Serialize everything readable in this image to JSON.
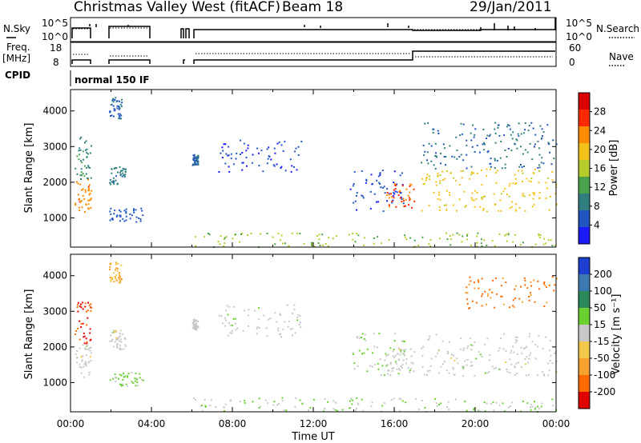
{
  "header": {
    "station": "Christmas Valley West (fitACF)",
    "beam": "Beam 18",
    "date": "29/Jan/2011"
  },
  "params": {
    "nsky_label": "N.Sky",
    "nsky_ticks": [
      "10^5",
      "10^0"
    ],
    "nsearch_label": "N.Search",
    "nsearch_ticks": [
      "10^5",
      "10^0"
    ],
    "freq_label": "Freq.",
    "freq_unit": "[MHz]",
    "freq_ticks": [
      "18",
      "8"
    ],
    "nave_label": "Nave",
    "nave_ticks": [
      "60",
      "0"
    ],
    "cpid_label": "CPID",
    "cpid_value": "normal 150 IF"
  },
  "colors": {
    "power_scale": [
      "#1a1aff",
      "#2255c0",
      "#2f7f7f",
      "#4aa34a",
      "#b5cc2a",
      "#f3c21a",
      "#ff8c00",
      "#ff2a00",
      "#d80000"
    ],
    "velocity_scale": [
      "#1f3fd0",
      "#3a7ab0",
      "#2c8a5a",
      "#6ad030",
      "#c8c8c8",
      "#f2c84b",
      "#f7a22e",
      "#ff6a00",
      "#e00000"
    ]
  },
  "chart_data": [
    {
      "type": "heatmap",
      "panel": "power",
      "xlabel": "",
      "ylabel": "Slant Range [km]",
      "x_ticks": [
        "00:00",
        "04:00",
        "08:00",
        "12:00",
        "16:00",
        "20:00",
        "00:00"
      ],
      "x_range_hours": [
        0,
        24
      ],
      "y_range_km": [
        180,
        4600
      ],
      "y_ticks": [
        1000,
        2000,
        3000,
        4000
      ],
      "colorbar": {
        "label": "Power [dB]",
        "ticks": [
          "28",
          "24",
          "20",
          "16",
          "12",
          "8",
          "4"
        ],
        "range": [
          0,
          30
        ]
      },
      "scatter_regions_hours_km": [
        {
          "x": [
            0.2,
            1.0
          ],
          "y": [
            1100,
            2100
          ],
          "level": 22
        },
        {
          "x": [
            0.2,
            1.0
          ],
          "y": [
            2100,
            3300
          ],
          "level": 9
        },
        {
          "x": [
            1.9,
            2.7
          ],
          "y": [
            1950,
            2500
          ],
          "level": 8
        },
        {
          "x": [
            1.9,
            3.6
          ],
          "y": [
            900,
            1300
          ],
          "level": 5
        },
        {
          "x": [
            1.9,
            2.5
          ],
          "y": [
            3800,
            4400
          ],
          "level": 6
        },
        {
          "x": [
            6.0,
            6.3
          ],
          "y": [
            2500,
            2800
          ],
          "level": 6
        },
        {
          "x": [
            7.3,
            11.5
          ],
          "y": [
            2300,
            3200
          ],
          "level": 4
        },
        {
          "x": [
            13.8,
            16.5
          ],
          "y": [
            1200,
            2400
          ],
          "level": 4
        },
        {
          "x": [
            15.6,
            17.0
          ],
          "y": [
            1300,
            2000
          ],
          "level": 24
        },
        {
          "x": [
            17.3,
            24.0
          ],
          "y": [
            1200,
            2400
          ],
          "level": 18
        },
        {
          "x": [
            17.3,
            24.0
          ],
          "y": [
            2400,
            3700
          ],
          "level": 7
        },
        {
          "x": [
            6.0,
            24.0
          ],
          "y": [
            200,
            600
          ],
          "level": 14
        }
      ]
    },
    {
      "type": "heatmap",
      "panel": "velocity",
      "xlabel": "Time UT",
      "ylabel": "Slant Range [km]",
      "x_ticks": [
        "00:00",
        "04:00",
        "08:00",
        "12:00",
        "16:00",
        "20:00",
        "00:00"
      ],
      "x_range_hours": [
        0,
        24
      ],
      "y_range_km": [
        180,
        4600
      ],
      "y_ticks": [
        1000,
        2000,
        3000,
        4000
      ],
      "colorbar": {
        "label": "Velocity [m s⁻¹]",
        "ticks": [
          "200",
          "100",
          "50",
          "15",
          "-15",
          "-50",
          "-100",
          "-200"
        ],
        "range": [
          -250,
          250
        ]
      },
      "scatter_regions_hours_km": [
        {
          "x": [
            0.2,
            1.0
          ],
          "y": [
            1100,
            2100
          ],
          "velocity": 0
        },
        {
          "x": [
            0.2,
            1.0
          ],
          "y": [
            2100,
            3300
          ],
          "velocity": -200
        },
        {
          "x": [
            1.9,
            2.7
          ],
          "y": [
            1950,
            2500
          ],
          "velocity": 0
        },
        {
          "x": [
            1.9,
            3.6
          ],
          "y": [
            900,
            1300
          ],
          "velocity": 40
        },
        {
          "x": [
            1.9,
            2.5
          ],
          "y": [
            3800,
            4400
          ],
          "velocity": -80
        },
        {
          "x": [
            6.0,
            6.3
          ],
          "y": [
            2500,
            2800
          ],
          "velocity": 0
        },
        {
          "x": [
            7.3,
            11.5
          ],
          "y": [
            2300,
            3200
          ],
          "velocity": 0
        },
        {
          "x": [
            13.8,
            16.5
          ],
          "y": [
            1200,
            2400
          ],
          "velocity": 30
        },
        {
          "x": [
            15.6,
            17.0
          ],
          "y": [
            1300,
            2000
          ],
          "velocity": 0
        },
        {
          "x": [
            17.3,
            24.0
          ],
          "y": [
            1200,
            2400
          ],
          "velocity": 0
        },
        {
          "x": [
            19.5,
            24.0
          ],
          "y": [
            3100,
            4000
          ],
          "velocity": -150
        },
        {
          "x": [
            6.0,
            24.0
          ],
          "y": [
            200,
            600
          ],
          "velocity": 20
        }
      ]
    }
  ]
}
